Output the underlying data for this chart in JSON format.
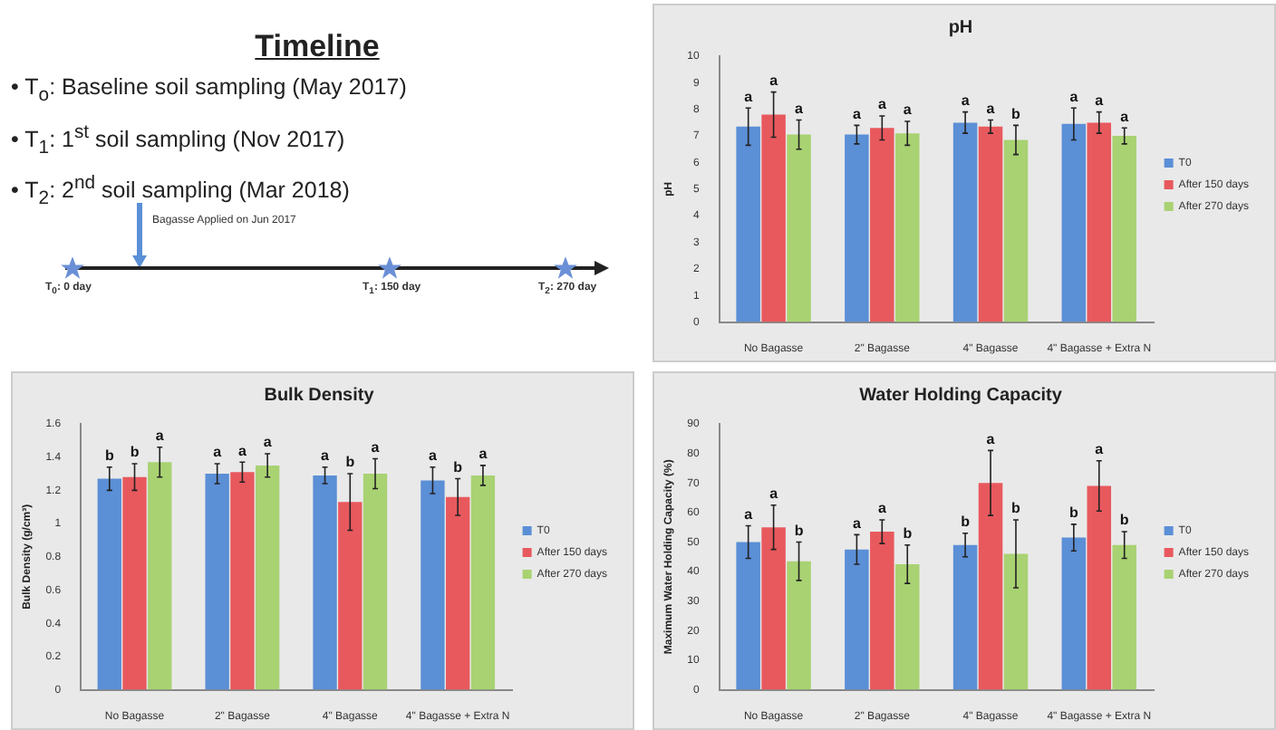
{
  "chart_data": [
    {
      "type": "other",
      "title": "Timeline",
      "annotations": [
        "• T$_{o}$: Baseline soil sampling (May 2017)",
        "• T$_{1}$: 1$^{st}$ soil sampling (Nov 2017)",
        "• T$_{2}$: 2$^{nd}$ soil sampling (Mar 2018)",
        "Bagasse Applied on Jun 2017",
        "T$_{0}$: 0 day",
        "T$_{1}$: 150 day",
        "T$_{2}$: 270 day"
      ]
    },
    {
      "type": "bar",
      "title": "pH",
      "ylabel": "pH",
      "categories": [
        "No Bagasse",
        "2\" Bagasse",
        "4\" Bagasse",
        "4\" Bagasse + Extra N"
      ],
      "ylim": [
        0,
        10
      ],
      "yticks": [
        0,
        1,
        2,
        3,
        4,
        5,
        6,
        7,
        8,
        9,
        10
      ],
      "grid": false,
      "legend": "right",
      "series": [
        {
          "name": "T0",
          "color": "#5b8fd6",
          "values": [
            7.35,
            7.05,
            7.5,
            7.45
          ],
          "errors": [
            0.7,
            0.35,
            0.4,
            0.6
          ],
          "value_labels": [
            "a",
            "a",
            "a",
            "a"
          ]
        },
        {
          "name": "After 150 days",
          "color": "#e8595e",
          "values": [
            7.8,
            7.3,
            7.35,
            7.5
          ],
          "errors": [
            0.85,
            0.45,
            0.25,
            0.4
          ],
          "value_labels": [
            "a",
            "a",
            "a",
            "a"
          ]
        },
        {
          "name": "After 270 days",
          "color": "#a9d272",
          "values": [
            7.05,
            7.1,
            6.85,
            7.0
          ],
          "errors": [
            0.55,
            0.45,
            0.55,
            0.3
          ],
          "value_labels": [
            "a",
            "a",
            "b",
            "a"
          ]
        }
      ]
    },
    {
      "type": "bar",
      "title": "Bulk Density",
      "ylabel": "Bulk Density (g/cm³)",
      "categories": [
        "No Bagasse",
        "2\" Bagasse",
        "4\" Bagasse",
        "4\" Bagasse + Extra N"
      ],
      "ylim": [
        0,
        1.6
      ],
      "yticks": [
        0,
        0.2,
        0.4,
        0.6,
        0.8,
        1,
        1.2,
        1.4,
        1.6
      ],
      "grid": false,
      "legend": "right",
      "series": [
        {
          "name": "T0",
          "color": "#5b8fd6",
          "values": [
            1.27,
            1.3,
            1.29,
            1.26
          ],
          "errors": [
            0.07,
            0.06,
            0.05,
            0.08
          ],
          "value_labels": [
            "b",
            "a",
            "a",
            "a"
          ]
        },
        {
          "name": "After 150 days",
          "color": "#e8595e",
          "values": [
            1.28,
            1.31,
            1.13,
            1.16
          ],
          "errors": [
            0.08,
            0.06,
            0.17,
            0.11
          ],
          "value_labels": [
            "b",
            "a",
            "b",
            "b"
          ]
        },
        {
          "name": "After 270 days",
          "color": "#a9d272",
          "values": [
            1.37,
            1.35,
            1.3,
            1.29
          ],
          "errors": [
            0.09,
            0.07,
            0.09,
            0.06
          ],
          "value_labels": [
            "a",
            "a",
            "a",
            "a"
          ]
        }
      ]
    },
    {
      "type": "bar",
      "title": "Water Holding Capacity",
      "ylabel": "Maximum Water Holding Capacity (%)",
      "categories": [
        "No Bagasse",
        "2\" Bagasse",
        "4\" Bagasse",
        "4\" Bagasse + Extra N"
      ],
      "ylim": [
        0,
        90
      ],
      "yticks": [
        0,
        10,
        20,
        30,
        40,
        50,
        60,
        70,
        80,
        90
      ],
      "grid": false,
      "legend": "right",
      "series": [
        {
          "name": "T0",
          "color": "#5b8fd6",
          "values": [
            50,
            47.5,
            49,
            51.5
          ],
          "errors": [
            5.5,
            5,
            4,
            4.5
          ],
          "value_labels": [
            "a",
            "a",
            "b",
            "b"
          ]
        },
        {
          "name": "After 150 days",
          "color": "#e8595e",
          "values": [
            55,
            53.5,
            70,
            69
          ],
          "errors": [
            7.5,
            4,
            11,
            8.5
          ],
          "value_labels": [
            "a",
            "a",
            "a",
            "a"
          ]
        },
        {
          "name": "After 270 days",
          "color": "#a9d272",
          "values": [
            43.5,
            42.5,
            46,
            49
          ],
          "errors": [
            6.5,
            6.5,
            11.5,
            4.5
          ],
          "value_labels": [
            "b",
            "b",
            "b",
            "b"
          ]
        }
      ]
    }
  ]
}
